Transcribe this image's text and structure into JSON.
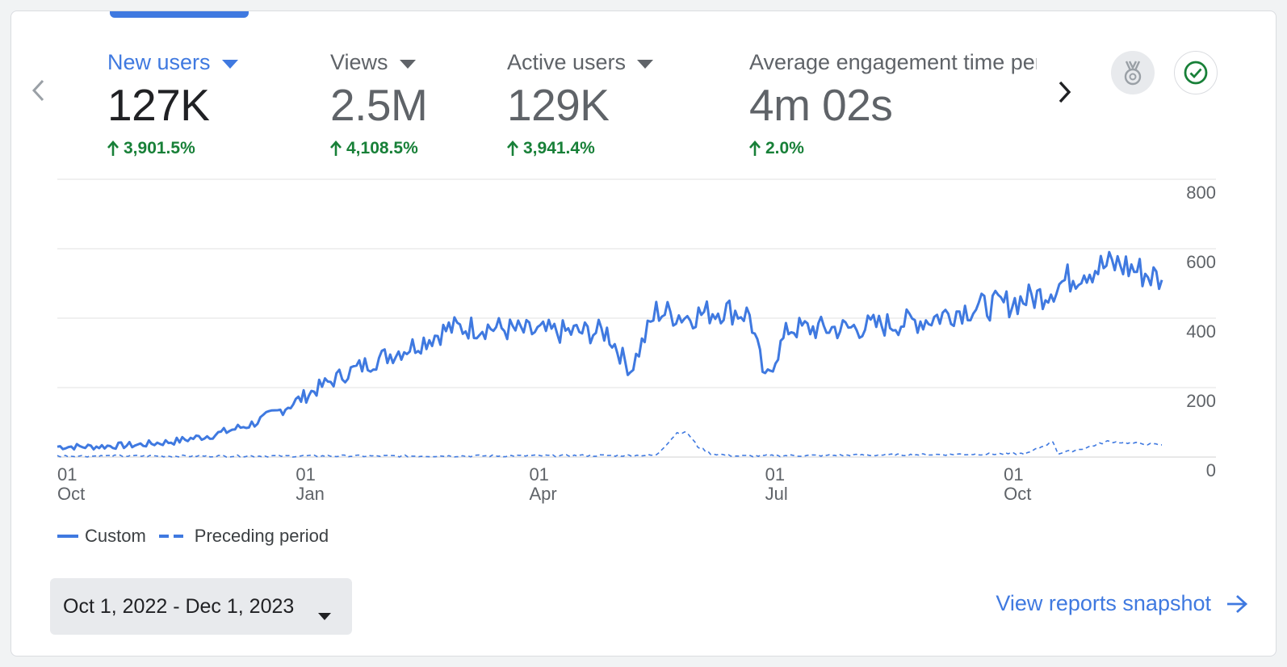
{
  "metrics": [
    {
      "title": "New users",
      "value": "127K",
      "change": "3,901.5%"
    },
    {
      "title": "Views",
      "value": "2.5M",
      "change": "4,108.5%"
    },
    {
      "title": "Active users",
      "value": "129K",
      "change": "3,941.4%"
    },
    {
      "title": "Average engagement time per active user",
      "value": "4m 02s",
      "change": "2.0%"
    }
  ],
  "legend": {
    "custom": "Custom",
    "preceding": "Preceding period"
  },
  "date_range": "Oct 1, 2022 - Dec 1, 2023",
  "snapshot_link": "View reports snapshot",
  "colors": {
    "accent": "#3f79e0",
    "positive": "#188038",
    "grid": "#e0e0e0"
  },
  "icons": {
    "prev": "chevron-left-icon",
    "next": "chevron-right-icon",
    "insights": "medal-icon",
    "status": "check-circle-icon"
  },
  "chart_data": {
    "type": "line",
    "xlabel": "",
    "ylabel": "",
    "ylim": [
      0,
      800
    ],
    "yticks": [
      "0",
      "200",
      "400",
      "600",
      "800"
    ],
    "xticks": [
      {
        "date": "2022-10-01",
        "day": "01",
        "month": "Oct"
      },
      {
        "date": "2023-01-01",
        "day": "01",
        "month": "Jan"
      },
      {
        "date": "2023-04-01",
        "day": "01",
        "month": "Apr"
      },
      {
        "date": "2023-07-01",
        "day": "01",
        "month": "Jul"
      },
      {
        "date": "2023-10-01",
        "day": "01",
        "month": "Oct"
      }
    ],
    "x_range": [
      "2022-10-01",
      "2023-12-01"
    ],
    "grid": true,
    "legend_position": "bottom-left",
    "series": [
      {
        "name": "Custom",
        "style": "solid",
        "points": [
          [
            "2022-10-01",
            30
          ],
          [
            "2022-10-15",
            30
          ],
          [
            "2022-11-01",
            35
          ],
          [
            "2022-11-15",
            45
          ],
          [
            "2022-12-01",
            65
          ],
          [
            "2022-12-15",
            95
          ],
          [
            "2022-12-25",
            130
          ],
          [
            "2023-01-01",
            160
          ],
          [
            "2023-01-10",
            200
          ],
          [
            "2023-01-20",
            240
          ],
          [
            "2023-02-01",
            280
          ],
          [
            "2023-02-15",
            320
          ],
          [
            "2023-03-01",
            370
          ],
          [
            "2023-03-15",
            375
          ],
          [
            "2023-04-01",
            360
          ],
          [
            "2023-04-15",
            360
          ],
          [
            "2023-05-01",
            360
          ],
          [
            "2023-05-10",
            250
          ],
          [
            "2023-05-20",
            420
          ],
          [
            "2023-06-01",
            405
          ],
          [
            "2023-06-15",
            425
          ],
          [
            "2023-06-25",
            410
          ],
          [
            "2023-07-01",
            220
          ],
          [
            "2023-07-10",
            370
          ],
          [
            "2023-08-01",
            370
          ],
          [
            "2023-08-15",
            380
          ],
          [
            "2023-09-01",
            395
          ],
          [
            "2023-09-15",
            425
          ],
          [
            "2023-10-01",
            440
          ],
          [
            "2023-10-15",
            465
          ],
          [
            "2023-11-01",
            540
          ],
          [
            "2023-11-15",
            555
          ],
          [
            "2023-12-01",
            510
          ]
        ]
      },
      {
        "name": "Preceding period",
        "style": "dashed",
        "points": [
          [
            "2022-10-01",
            3
          ],
          [
            "2022-12-01",
            3
          ],
          [
            "2023-03-01",
            3
          ],
          [
            "2023-05-20",
            5
          ],
          [
            "2023-05-28",
            70
          ],
          [
            "2023-06-01",
            70
          ],
          [
            "2023-06-05",
            30
          ],
          [
            "2023-06-10",
            10
          ],
          [
            "2023-06-20",
            3
          ],
          [
            "2023-08-01",
            5
          ],
          [
            "2023-09-15",
            8
          ],
          [
            "2023-10-10",
            10
          ],
          [
            "2023-10-20",
            45
          ],
          [
            "2023-10-22",
            10
          ],
          [
            "2023-11-01",
            25
          ],
          [
            "2023-11-10",
            45
          ],
          [
            "2023-11-20",
            40
          ],
          [
            "2023-12-01",
            35
          ]
        ]
      }
    ]
  }
}
